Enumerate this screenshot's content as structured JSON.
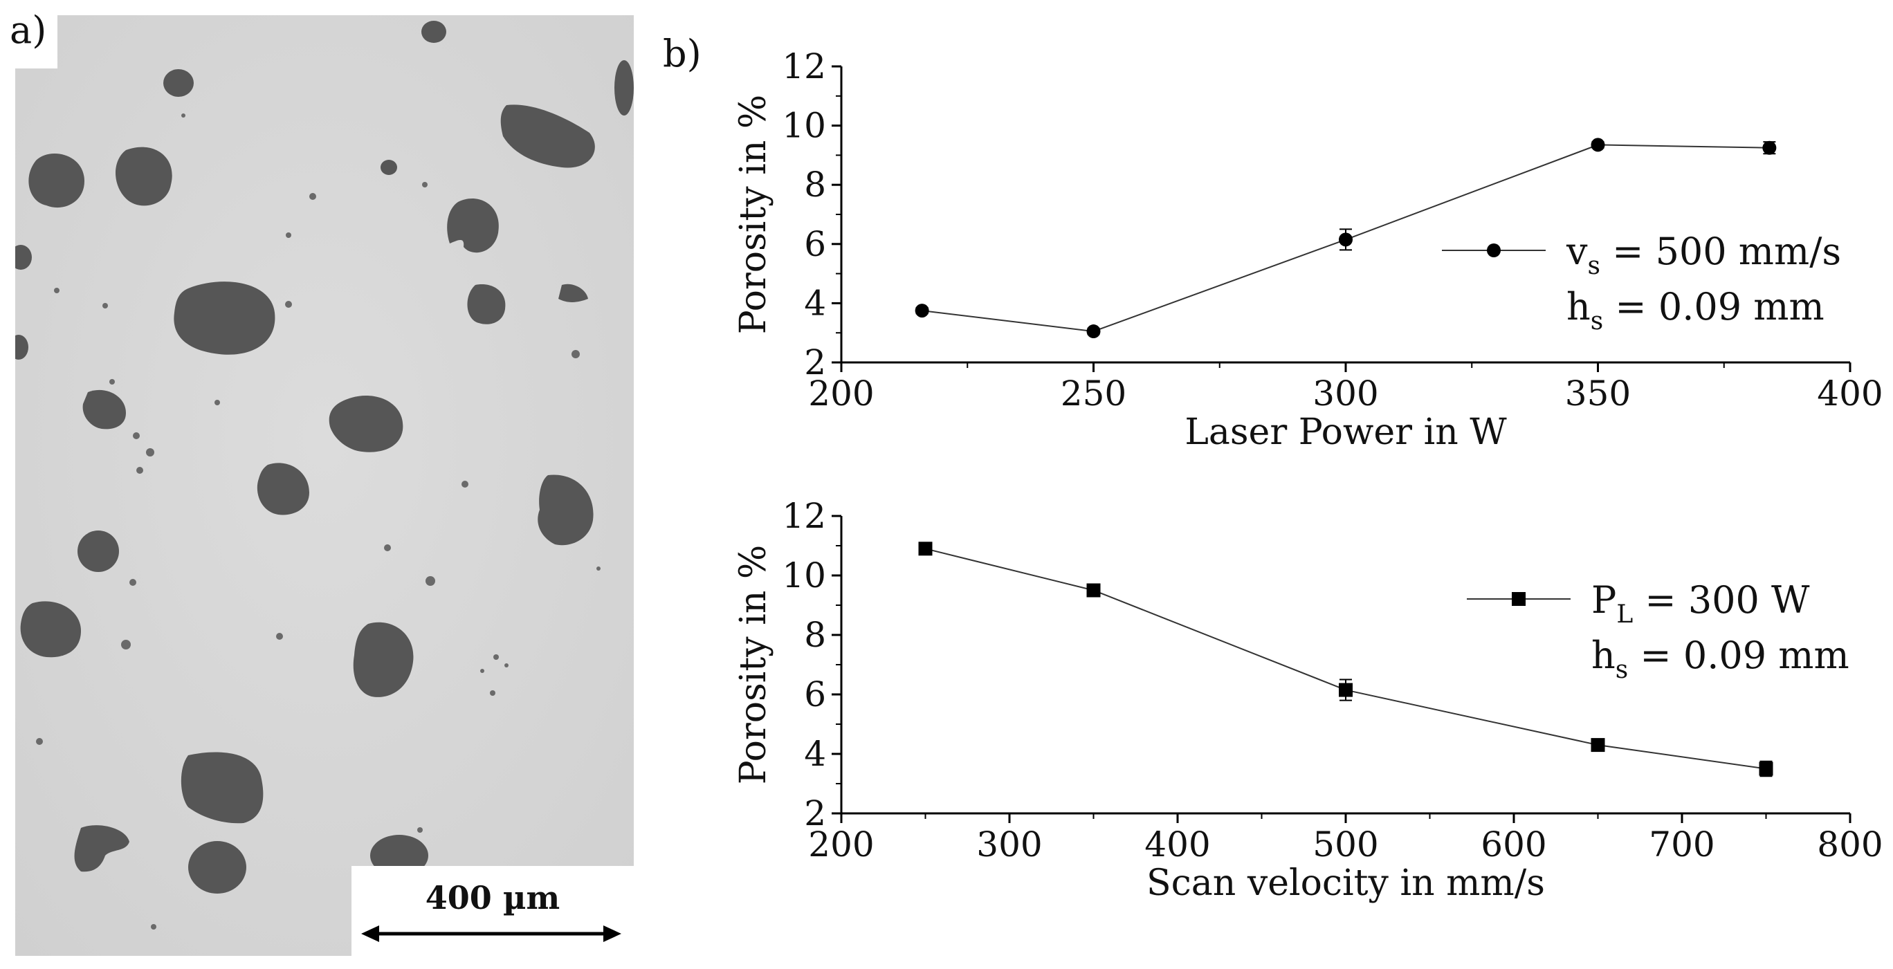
{
  "panel_labels": {
    "a": "a)",
    "b": "b)"
  },
  "scale_bar": {
    "label": "400 µm"
  },
  "chart_data": [
    {
      "type": "line",
      "marker": "circle",
      "xlabel": "Laser Power in W",
      "ylabel": "Porosity in %",
      "xlim": [
        200,
        400
      ],
      "ylim": [
        2,
        12
      ],
      "xticks": [
        200,
        250,
        300,
        350,
        400
      ],
      "yticks": [
        2,
        4,
        6,
        8,
        10,
        12
      ],
      "x": [
        216,
        250,
        300,
        350,
        384
      ],
      "series": [
        {
          "values": [
            3.75,
            3.05,
            6.15,
            9.35,
            9.25
          ],
          "errors": [
            0.1,
            0.1,
            0.35,
            0.1,
            0.2
          ]
        }
      ],
      "legend": {
        "line1": "v",
        "line1_sub": "s",
        "line1_rest": " = 500 mm/s",
        "line2": "h",
        "line2_sub": "s",
        "line2_rest": " = 0.09 mm",
        "position": "right"
      },
      "color": "#000000"
    },
    {
      "type": "line",
      "marker": "square",
      "xlabel": "Scan velocity in mm/s",
      "ylabel": "Porosity in %",
      "xlim": [
        200,
        800
      ],
      "ylim": [
        2,
        12
      ],
      "xticks": [
        200,
        300,
        400,
        500,
        600,
        700,
        800
      ],
      "yticks": [
        2,
        4,
        6,
        8,
        10,
        12
      ],
      "x": [
        250,
        350,
        500,
        650,
        750
      ],
      "series": [
        {
          "values": [
            10.9,
            9.5,
            6.15,
            4.3,
            3.5
          ],
          "errors": [
            0.1,
            0.1,
            0.35,
            0.1,
            0.25
          ]
        }
      ],
      "legend": {
        "line1": "P",
        "line1_sub": "L",
        "line1_rest": " = 300 W",
        "line2": "h",
        "line2_sub": "s",
        "line2_rest": " = 0.09 mm",
        "position": "right"
      },
      "color": "#000000"
    }
  ]
}
